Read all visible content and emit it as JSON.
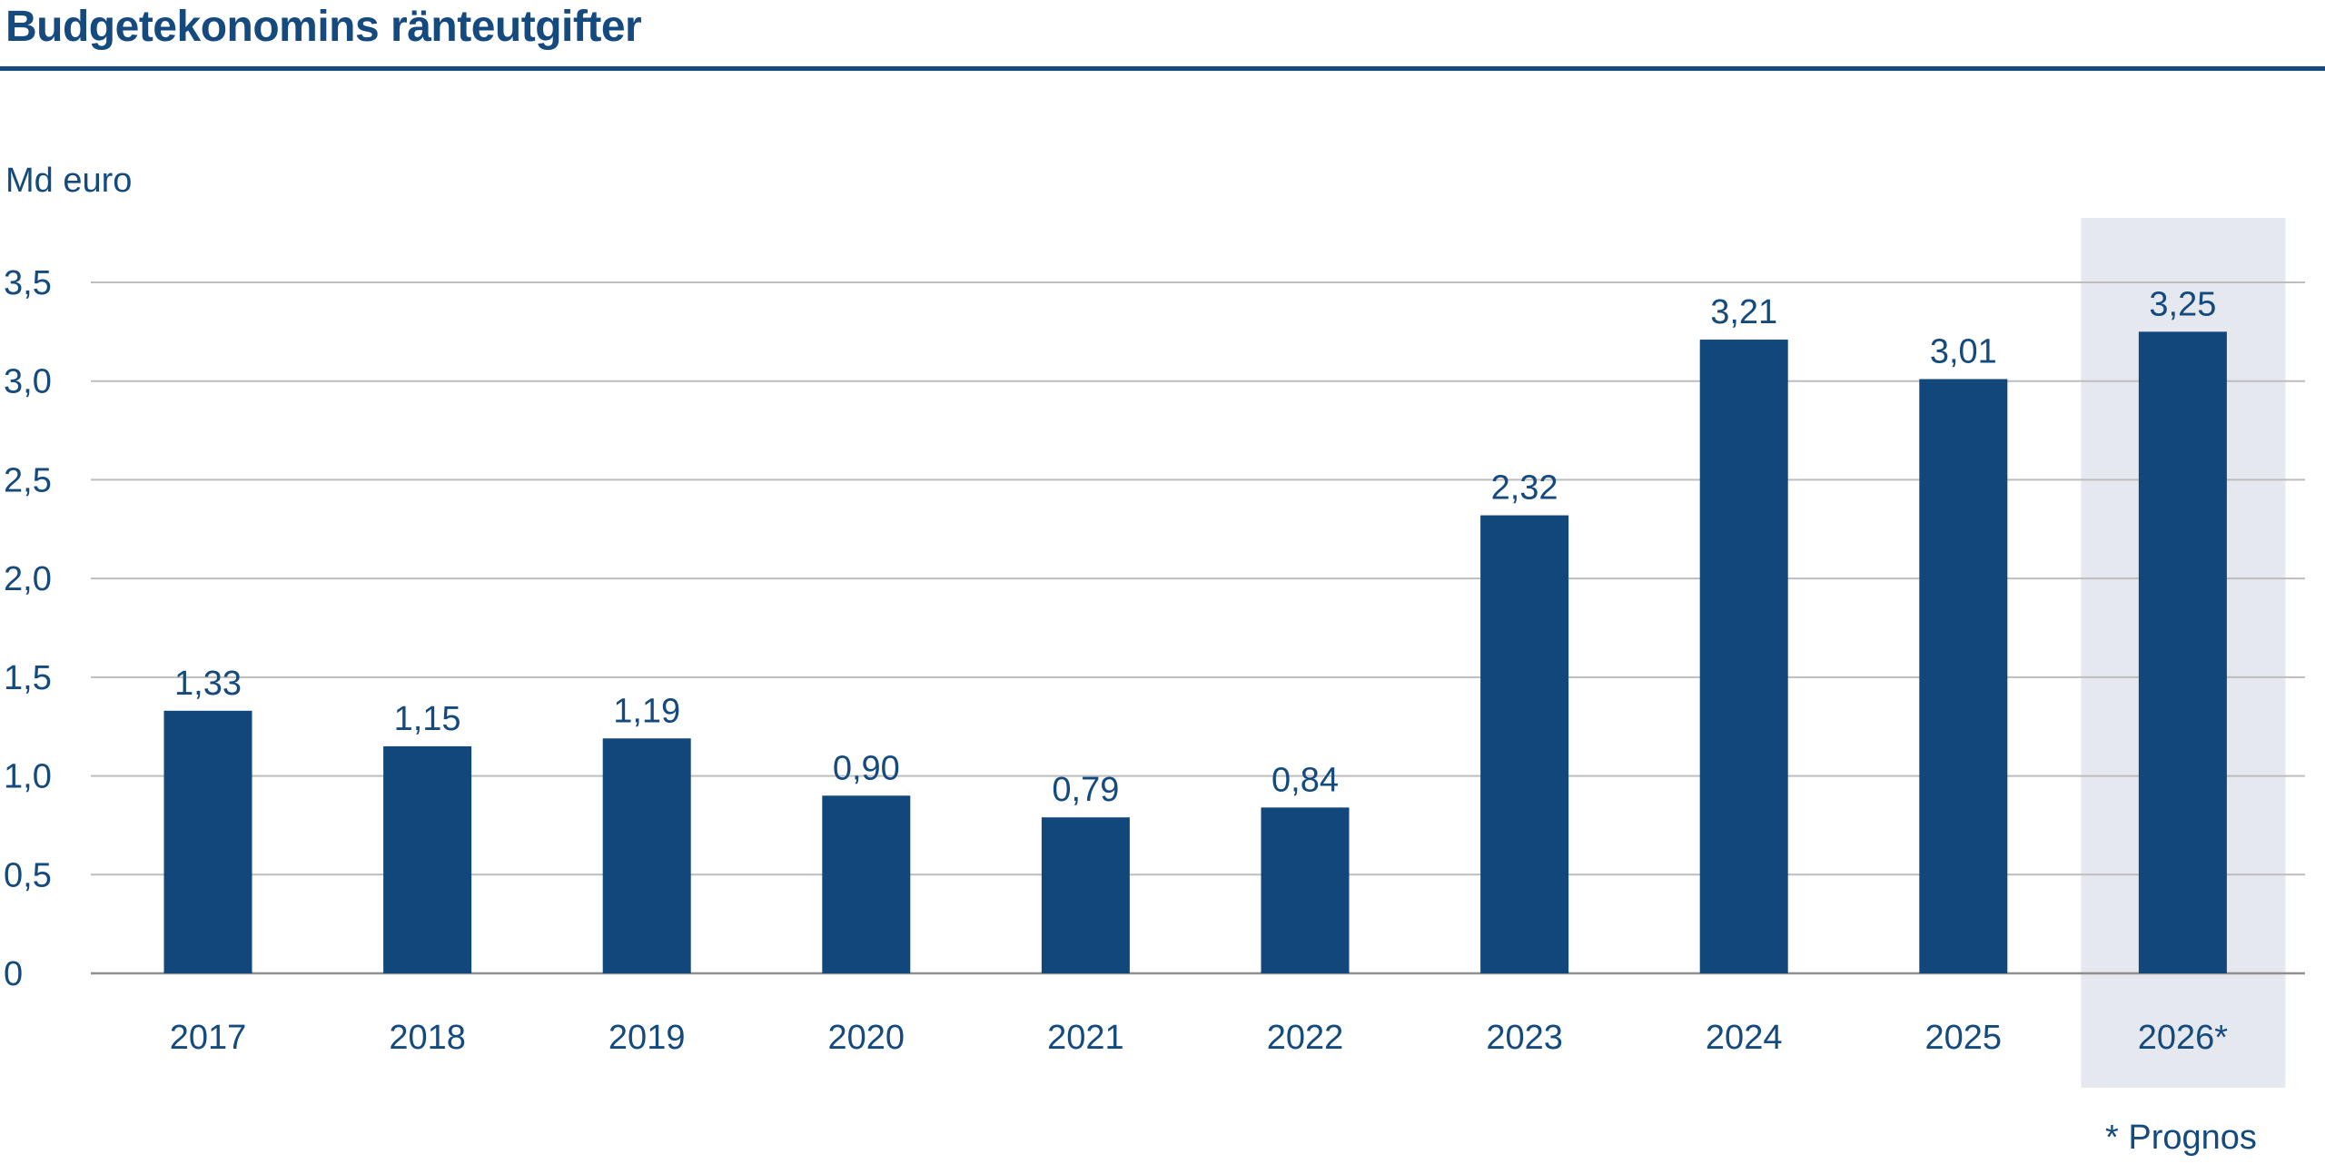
{
  "title": "Budgetekonomins ränteutgifter",
  "unit_label": "Md euro",
  "footnote": "* Prognos",
  "colors": {
    "bar": "#12477b",
    "text": "#154a7e",
    "grid": "#bdbdbd",
    "axis": "#8f8f8f",
    "forecast_band": "#e5e9ef",
    "title_rule": "#154a7e"
  },
  "chart_data": {
    "type": "bar",
    "title": "Budgetekonomins ränteutgifter",
    "ylabel": "Md euro",
    "xlabel": "",
    "categories": [
      "2017",
      "2018",
      "2019",
      "2020",
      "2021",
      "2022",
      "2023",
      "2024",
      "2025",
      "2026*"
    ],
    "values": [
      1.33,
      1.15,
      1.19,
      0.9,
      0.79,
      0.84,
      2.32,
      3.21,
      3.01,
      3.25
    ],
    "value_labels": [
      "1,33",
      "1,15",
      "1,19",
      "0,90",
      "0,79",
      "0,84",
      "2,32",
      "3,21",
      "3,01",
      "3,25"
    ],
    "ylim": [
      0,
      3.5
    ],
    "yticks": [
      0,
      0.5,
      1.0,
      1.5,
      2.0,
      2.5,
      3.0,
      3.5
    ],
    "ytick_labels": [
      "0",
      "0,5",
      "1,0",
      "1,5",
      "2,0",
      "2,5",
      "3,0",
      "3,5"
    ],
    "forecast_category": "2026*",
    "grid": true,
    "legend": "none"
  }
}
